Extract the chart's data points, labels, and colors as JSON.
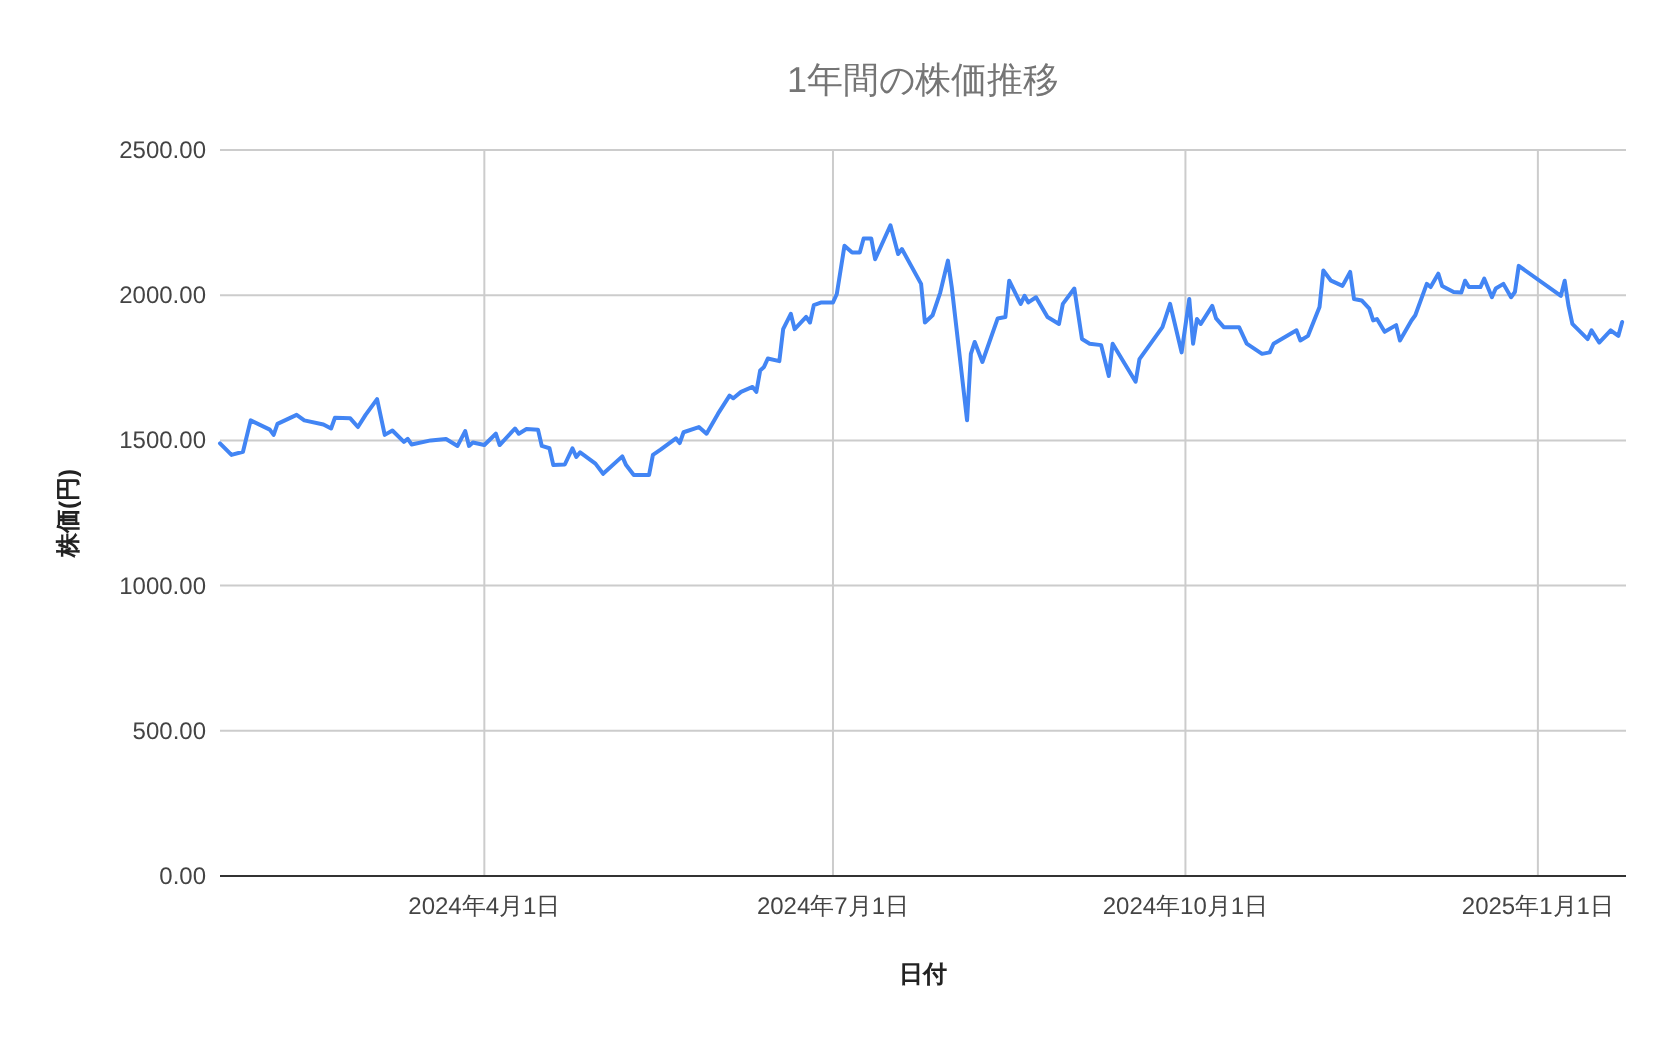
{
  "chart_data": {
    "type": "line",
    "title": "1年間の株価推移",
    "xlabel": "日付",
    "ylabel": "株価(円)",
    "color": "#4285f4",
    "grid": true,
    "marker": "none",
    "line_style": "solid",
    "xlim": [
      "2024-01-23",
      "2025-01-24"
    ],
    "ylim": [
      0,
      2500
    ],
    "yticks": [
      {
        "value": 0,
        "label": "0.00"
      },
      {
        "value": 500,
        "label": "500.00"
      },
      {
        "value": 1000,
        "label": "1000.00"
      },
      {
        "value": 1500,
        "label": "1500.00"
      },
      {
        "value": 2000,
        "label": "2000.00"
      },
      {
        "value": 2500,
        "label": "2500.00"
      }
    ],
    "xticks": [
      {
        "value": "2024-04-01",
        "label": "2024年4月1日"
      },
      {
        "value": "2024-07-01",
        "label": "2024年7月1日"
      },
      {
        "value": "2024-10-01",
        "label": "2024年10月1日"
      },
      {
        "value": "2025-01-01",
        "label": "2025年1月1日"
      }
    ],
    "x": [
      "2024-01-23",
      "2024-01-26",
      "2024-01-29",
      "2024-01-31",
      "2024-02-05",
      "2024-02-06",
      "2024-02-07",
      "2024-02-12",
      "2024-02-14",
      "2024-02-19",
      "2024-02-21",
      "2024-02-22",
      "2024-02-26",
      "2024-02-28",
      "2024-03-01",
      "2024-03-04",
      "2024-03-06",
      "2024-03-08",
      "2024-03-11",
      "2024-03-12",
      "2024-03-13",
      "2024-03-18",
      "2024-03-22",
      "2024-03-25",
      "2024-03-27",
      "2024-03-28",
      "2024-03-29",
      "2024-04-01",
      "2024-04-04",
      "2024-04-05",
      "2024-04-09",
      "2024-04-10",
      "2024-04-12",
      "2024-04-15",
      "2024-04-16",
      "2024-04-18",
      "2024-04-19",
      "2024-04-22",
      "2024-04-24",
      "2024-04-25",
      "2024-04-26",
      "2024-04-30",
      "2024-05-02",
      "2024-05-07",
      "2024-05-08",
      "2024-05-10",
      "2024-05-14",
      "2024-05-15",
      "2024-05-17",
      "2024-05-21",
      "2024-05-22",
      "2024-05-23",
      "2024-05-27",
      "2024-05-29",
      "2024-06-01",
      "2024-06-04",
      "2024-06-05",
      "2024-06-07",
      "2024-06-10",
      "2024-06-11",
      "2024-06-12",
      "2024-06-13",
      "2024-06-14",
      "2024-06-17",
      "2024-06-18",
      "2024-06-20",
      "2024-06-21",
      "2024-06-24",
      "2024-06-25",
      "2024-06-26",
      "2024-06-28",
      "2024-07-01",
      "2024-07-02",
      "2024-07-04",
      "2024-07-06",
      "2024-07-08",
      "2024-07-09",
      "2024-07-11",
      "2024-07-12",
      "2024-07-16",
      "2024-07-18",
      "2024-07-19",
      "2024-07-24",
      "2024-07-25",
      "2024-07-27",
      "2024-07-29",
      "2024-07-31",
      "2024-08-01",
      "2024-08-05",
      "2024-08-06",
      "2024-08-07",
      "2024-08-09",
      "2024-08-13",
      "2024-08-15",
      "2024-08-16",
      "2024-08-19",
      "2024-08-20",
      "2024-08-21",
      "2024-08-23",
      "2024-08-26",
      "2024-08-29",
      "2024-08-30",
      "2024-09-02",
      "2024-09-04",
      "2024-09-06",
      "2024-09-09",
      "2024-09-11",
      "2024-09-12",
      "2024-09-18",
      "2024-09-19",
      "2024-09-25",
      "2024-09-27",
      "2024-09-30",
      "2024-10-02",
      "2024-10-03",
      "2024-10-04",
      "2024-10-05",
      "2024-10-08",
      "2024-10-09",
      "2024-10-11",
      "2024-10-15",
      "2024-10-17",
      "2024-10-21",
      "2024-10-23",
      "2024-10-24",
      "2024-10-30",
      "2024-10-31",
      "2024-11-02",
      "2024-11-05",
      "2024-11-06",
      "2024-11-08",
      "2024-11-11",
      "2024-11-13",
      "2024-11-14",
      "2024-11-16",
      "2024-11-18",
      "2024-11-19",
      "2024-11-20",
      "2024-11-22",
      "2024-11-25",
      "2024-11-26",
      "2024-11-29",
      "2024-11-30",
      "2024-12-03",
      "2024-12-04",
      "2024-12-06",
      "2024-12-07",
      "2024-12-10",
      "2024-12-12",
      "2024-12-13",
      "2024-12-14",
      "2024-12-17",
      "2024-12-18",
      "2024-12-20",
      "2024-12-21",
      "2024-12-23",
      "2024-12-25",
      "2024-12-26",
      "2024-12-27",
      "2025-01-07",
      "2025-01-08",
      "2025-01-09",
      "2025-01-10",
      "2025-01-14",
      "2025-01-15",
      "2025-01-17",
      "2025-01-20",
      "2025-01-22",
      "2025-01-23"
    ],
    "values": [
      1490,
      1450,
      1461,
      1569,
      1537,
      1519,
      1557,
      1588,
      1569,
      1555,
      1541,
      1578,
      1576,
      1546,
      1588,
      1642,
      1519,
      1534,
      1495,
      1505,
      1486,
      1500,
      1505,
      1481,
      1532,
      1481,
      1493,
      1484,
      1523,
      1484,
      1541,
      1523,
      1539,
      1537,
      1481,
      1473,
      1415,
      1417,
      1473,
      1443,
      1459,
      1420,
      1385,
      1445,
      1415,
      1381,
      1381,
      1450,
      1468,
      1507,
      1491,
      1528,
      1546,
      1523,
      1592,
      1654,
      1645,
      1667,
      1684,
      1667,
      1741,
      1753,
      1782,
      1773,
      1883,
      1936,
      1883,
      1925,
      1906,
      1966,
      1975,
      1975,
      2004,
      2170,
      2147,
      2147,
      2195,
      2195,
      2124,
      2241,
      2142,
      2159,
      2039,
      1906,
      1931,
      2009,
      2119,
      2028,
      1569,
      1798,
      1839,
      1770,
      1920,
      1925,
      2050,
      1970,
      1998,
      1975,
      1993,
      1925,
      1901,
      1970,
      2023,
      1849,
      1833,
      1828,
      1722,
      1833,
      1702,
      1780,
      1890,
      1970,
      1803,
      1987,
      1833,
      1918,
      1901,
      1963,
      1920,
      1890,
      1890,
      1833,
      1798,
      1803,
      1833,
      1879,
      1844,
      1860,
      1959,
      2085,
      2050,
      2032,
      2080,
      1987,
      1982,
      1954,
      1913,
      1918,
      1874,
      1897,
      1844,
      1913,
      1931,
      2039,
      2028,
      2074,
      2032,
      2011,
      2009,
      2050,
      2028,
      2028,
      2057,
      1993,
      2023,
      2039,
      1993,
      2011,
      2101,
      1998,
      2050,
      1963,
      1901,
      1849,
      1879,
      1837,
      1879,
      1860,
      1908
    ]
  }
}
